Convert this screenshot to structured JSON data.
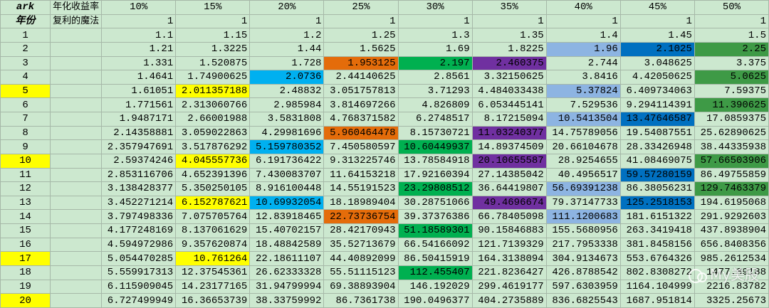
{
  "table": {
    "header": [
      "ark",
      "年化收益率",
      "10%",
      "15%",
      "20%",
      "25%",
      "30%",
      "35%",
      "40%",
      "45%",
      "50%"
    ],
    "subheader": [
      "年份",
      "复利的魔法",
      "1",
      "1",
      "1",
      "1",
      "1",
      "1",
      "1",
      "1",
      "1"
    ],
    "rows": [
      [
        "1",
        "1.1",
        "1.15",
        "1.2",
        "1.25",
        "1.3",
        "1.35",
        "1.4",
        "1.45",
        "1.5"
      ],
      [
        "2",
        "1.21",
        "1.3225",
        "1.44",
        "1.5625",
        "1.69",
        "1.8225",
        "1.96",
        "2.1025",
        "2.25"
      ],
      [
        "3",
        "1.331",
        "1.520875",
        "1.728",
        "1.953125",
        "2.197",
        "2.460375",
        "2.744",
        "3.048625",
        "3.375"
      ],
      [
        "4",
        "1.4641",
        "1.74900625",
        "2.0736",
        "2.44140625",
        "2.8561",
        "3.32150625",
        "3.8416",
        "4.42050625",
        "5.0625"
      ],
      [
        "5",
        "1.61051",
        "2.011357188",
        "2.48832",
        "3.051757813",
        "3.71293",
        "4.484033438",
        "5.37824",
        "6.409734063",
        "7.59375"
      ],
      [
        "6",
        "1.771561",
        "2.313060766",
        "2.985984",
        "3.814697266",
        "4.826809",
        "6.053445141",
        "7.529536",
        "9.294114391",
        "11.390625"
      ],
      [
        "7",
        "1.9487171",
        "2.66001988",
        "3.5831808",
        "4.768371582",
        "6.2748517",
        "8.17215094",
        "10.5413504",
        "13.47646587",
        "17.0859375"
      ],
      [
        "8",
        "2.14358881",
        "3.059022863",
        "4.29981696",
        "5.960464478",
        "8.15730721",
        "11.03240377",
        "14.75789056",
        "19.54087551",
        "25.62890625"
      ],
      [
        "9",
        "2.357947691",
        "3.517876292",
        "5.159780352",
        "7.450580597",
        "10.60449937",
        "14.89374509",
        "20.66104678",
        "28.33426948",
        "38.44335938"
      ],
      [
        "10",
        "2.59374246",
        "4.045557736",
        "6.191736422",
        "9.313225746",
        "13.78584918",
        "20.10655587",
        "28.9254655",
        "41.08469075",
        "57.66503906"
      ],
      [
        "11",
        "2.853116706",
        "4.652391396",
        "7.430083707",
        "11.64153218",
        "17.92160394",
        "27.14385042",
        "40.4956517",
        "59.57280159",
        "86.49755859"
      ],
      [
        "12",
        "3.138428377",
        "5.350250105",
        "8.916100448",
        "14.55191523",
        "23.29808512",
        "36.64419807",
        "56.69391238",
        "86.38056231",
        "129.7463379"
      ],
      [
        "13",
        "3.452271214",
        "6.152787621",
        "10.69932054",
        "18.18989404",
        "30.28751066",
        "49.4696674",
        "79.37147733",
        "125.2518153",
        "194.6195068"
      ],
      [
        "14",
        "3.797498336",
        "7.075705764",
        "12.83918465",
        "22.73736754",
        "39.37376386",
        "66.78405098",
        "111.1200683",
        "181.6151322",
        "291.9292603"
      ],
      [
        "15",
        "4.177248169",
        "8.137061629",
        "15.40702157",
        "28.42170943",
        "51.18589301",
        "90.15846883",
        "155.5680956",
        "263.3419418",
        "437.8938904"
      ],
      [
        "16",
        "4.594972986",
        "9.357620874",
        "18.48842589",
        "35.52713679",
        "66.54166092",
        "121.7139329",
        "217.7953338",
        "381.8458156",
        "656.8408356"
      ],
      [
        "17",
        "5.054470285",
        "10.761264",
        "22.18611107",
        "44.40892099",
        "86.50415919",
        "164.3138094",
        "304.9134673",
        "553.6764326",
        "985.2612534"
      ],
      [
        "18",
        "5.559917313",
        "12.37545361",
        "26.62333328",
        "55.51115123",
        "112.455407",
        "221.8236427",
        "426.8788542",
        "802.8308272",
        "1477.89188"
      ],
      [
        "19",
        "6.115909045",
        "14.23177165",
        "31.94799994",
        "69.38893904",
        "146.192029",
        "299.4619177",
        "597.6303959",
        "1164.104999",
        "2216.83782"
      ],
      [
        "20",
        "6.727499949",
        "16.36653739",
        "38.33759992",
        "86.7361738",
        "190.0496377",
        "404.2735889",
        "836.6825543",
        "1687.951814",
        "3325.25673"
      ]
    ]
  },
  "watermark": "My美股"
}
